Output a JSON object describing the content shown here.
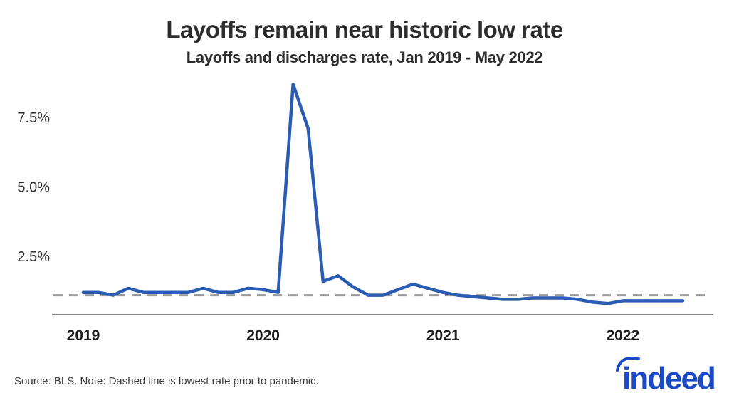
{
  "header": {
    "title": "Layoffs remain near historic low rate",
    "subtitle": "Layoffs and discharges rate, Jan 2019 - May 2022"
  },
  "chart_data": {
    "type": "line",
    "title": "Layoffs remain near historic low rate",
    "subtitle": "Layoffs and discharges rate, Jan 2019 - May 2022",
    "unit": "%",
    "xlabel": "",
    "ylabel": "",
    "ylim": [
      0,
      9.2
    ],
    "grid": false,
    "legend_position": "none",
    "x": [
      "Jan 2019",
      "Feb 2019",
      "Mar 2019",
      "Apr 2019",
      "May 2019",
      "Jun 2019",
      "Jul 2019",
      "Aug 2019",
      "Sep 2019",
      "Oct 2019",
      "Nov 2019",
      "Dec 2019",
      "Jan 2020",
      "Feb 2020",
      "Mar 2020",
      "Apr 2020",
      "May 2020",
      "Jun 2020",
      "Jul 2020",
      "Aug 2020",
      "Sep 2020",
      "Oct 2020",
      "Nov 2020",
      "Dec 2020",
      "Jan 2021",
      "Feb 2021",
      "Mar 2021",
      "Apr 2021",
      "May 2021",
      "Jun 2021",
      "Jul 2021",
      "Aug 2021",
      "Sep 2021",
      "Oct 2021",
      "Nov 2021",
      "Dec 2021",
      "Jan 2022",
      "Feb 2022",
      "Mar 2022",
      "Apr 2022",
      "May 2022"
    ],
    "series": [
      {
        "name": "Layoffs and discharges rate",
        "color": "#2b5cb3",
        "values": [
          1.2,
          1.2,
          1.1,
          1.35,
          1.2,
          1.2,
          1.2,
          1.2,
          1.35,
          1.2,
          1.2,
          1.35,
          1.3,
          1.2,
          8.7,
          7.1,
          1.6,
          1.8,
          1.4,
          1.1,
          1.1,
          1.3,
          1.5,
          1.35,
          1.2,
          1.1,
          1.05,
          1.0,
          0.95,
          0.95,
          1.0,
          1.0,
          1.0,
          0.95,
          0.85,
          0.8,
          0.9,
          0.9,
          0.9,
          0.9,
          0.9
        ]
      }
    ],
    "y_ticks": [
      {
        "value": 2.5,
        "label": "2.5%"
      },
      {
        "value": 5.0,
        "label": "5.0%"
      },
      {
        "value": 7.5,
        "label": "7.5%"
      }
    ],
    "x_ticks": [
      {
        "month_index": 0,
        "label": "2019"
      },
      {
        "month_index": 12,
        "label": "2020"
      },
      {
        "month_index": 24,
        "label": "2021"
      },
      {
        "month_index": 36,
        "label": "2022"
      }
    ],
    "reference_line": {
      "value": 1.1,
      "style": "dashed",
      "color": "#9a9a9a",
      "meaning": "lowest rate prior to pandemic"
    }
  },
  "footer": {
    "source_note": "Source: BLS. Note: Dashed line is lowest rate prior to pandemic."
  },
  "branding": {
    "logo_text": "indeed",
    "logo_color": "#1c49c6"
  },
  "colors": {
    "line_blue": "#2b5cb3",
    "dashed_gray": "#9a9a9a",
    "axis_gray": "#858585",
    "text_dark": "#2d2d2d",
    "tick_text": "#2f2f2f",
    "source_text": "#3a3a3a"
  }
}
